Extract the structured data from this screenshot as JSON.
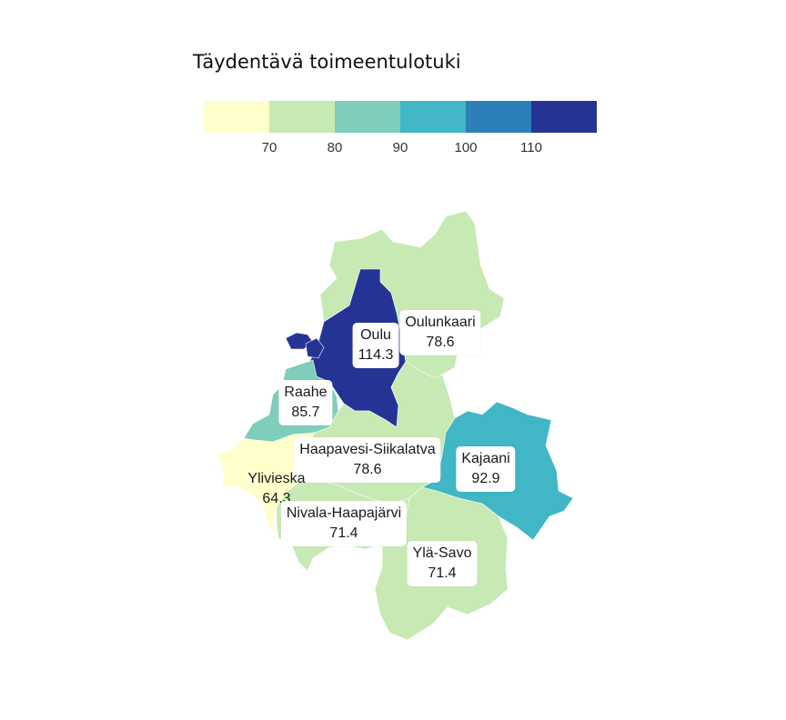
{
  "legend": {
    "title": "Täydentävä toimeentulotuki",
    "colors": [
      "#ffffcc",
      "#c7e9b4",
      "#7fcdbb",
      "#41b6c4",
      "#2c7fb8",
      "#253494"
    ],
    "ticks": [
      "70",
      "80",
      "90",
      "100",
      "110"
    ]
  },
  "regions": [
    {
      "name": "Oulu",
      "value": "114.3",
      "color": "#253494"
    },
    {
      "name": "Oulunkaari",
      "value": "78.6",
      "color": "#c7e9b4"
    },
    {
      "name": "Raahe",
      "value": "85.7",
      "color": "#7fcdbb"
    },
    {
      "name": "Haapavesi-Siikalatva",
      "value": "78.6",
      "color": "#c7e9b4"
    },
    {
      "name": "Kajaani",
      "value": "92.9",
      "color": "#41b6c4"
    },
    {
      "name": "Ylivieska",
      "value": "64.3",
      "color": "#ffffcc"
    },
    {
      "name": "Nivala-Haapajärvi",
      "value": "71.4",
      "color": "#c7e9b4"
    },
    {
      "name": "Ylä-Savo",
      "value": "71.4",
      "color": "#c7e9b4"
    }
  ]
}
